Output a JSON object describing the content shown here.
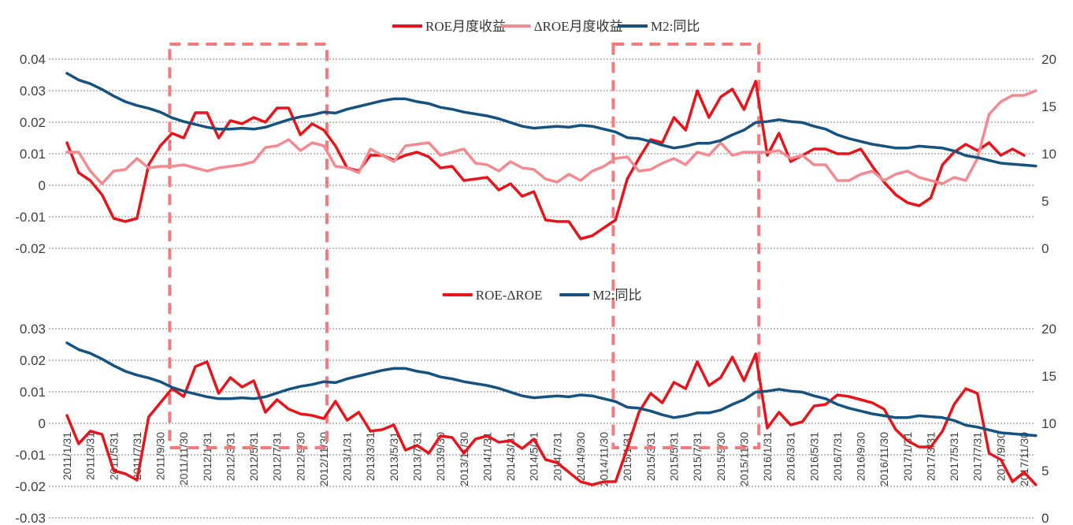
{
  "colors": {
    "roe": "#e8141b",
    "droe": "#f48a8f",
    "m2": "#16527f",
    "highlight": "#f47a7f"
  },
  "chart_data": [
    {
      "type": "line",
      "title": "",
      "legend": [
        "ROE月度收益",
        "ΔROE月度收益",
        "M2:同比"
      ],
      "legend_position": "top-center",
      "y_left": {
        "ticks": [
          "0.04",
          "0.03",
          "0.02",
          "0.01",
          "0",
          "-0.01",
          "-0.02"
        ],
        "range": [
          -0.02,
          0.04
        ]
      },
      "y_right": {
        "ticks": [
          "20",
          "15",
          "10",
          "5",
          "0"
        ],
        "range": [
          0,
          20
        ]
      },
      "grid": true,
      "series": [
        {
          "name": "ROE月度收益",
          "axis": "left",
          "color": "#e8141b",
          "values": [
            0.0135,
            0.004,
            0.0015,
            -0.003,
            -0.0105,
            -0.0115,
            -0.0105,
            0.0065,
            0.0125,
            0.0165,
            0.015,
            0.023,
            0.023,
            0.015,
            0.0205,
            0.0195,
            0.0215,
            0.02,
            0.0245,
            0.0245,
            0.016,
            0.0195,
            0.0175,
            0.0125,
            0.0055,
            0.0045,
            0.0095,
            0.0095,
            0.008,
            0.0095,
            0.0105,
            0.009,
            0.0055,
            0.006,
            0.0015,
            0.002,
            0.0025,
            -0.0015,
            0.0005,
            -0.0035,
            -0.002,
            -0.011,
            -0.0115,
            -0.0115,
            -0.017,
            -0.016,
            -0.0135,
            -0.011,
            0.002,
            0.0085,
            0.0145,
            0.0135,
            0.0215,
            0.0175,
            0.03,
            0.0215,
            0.028,
            0.0305,
            0.024,
            0.033,
            0.0095,
            0.0165,
            0.0075,
            0.0095,
            0.0115,
            0.0115,
            0.01,
            0.01,
            0.0115,
            0.006,
            0.001,
            -0.003,
            -0.0055,
            -0.0065,
            -0.004,
            0.0065,
            0.0105,
            0.013,
            0.011,
            0.0135,
            0.0095,
            0.0115,
            0.0095
          ]
        },
        {
          "name": "ΔROE月度收益",
          "axis": "left",
          "color": "#f48a8f",
          "values": [
            0.0105,
            0.0105,
            0.0045,
            0.0005,
            0.0045,
            0.005,
            0.0085,
            0.0055,
            0.006,
            0.006,
            0.0065,
            0.0055,
            0.0045,
            0.0055,
            0.006,
            0.0065,
            0.0075,
            0.012,
            0.0125,
            0.0145,
            0.011,
            0.0135,
            0.0125,
            0.006,
            0.0055,
            0.004,
            0.0115,
            0.0095,
            0.0075,
            0.0125,
            0.013,
            0.0135,
            0.0095,
            0.0105,
            0.0115,
            0.007,
            0.0065,
            0.0045,
            0.0075,
            0.0055,
            0.005,
            0.002,
            0.001,
            0.0035,
            0.0015,
            0.0045,
            0.006,
            0.0085,
            0.009,
            0.0045,
            0.005,
            0.007,
            0.0085,
            0.0065,
            0.0105,
            0.0095,
            0.0135,
            0.0095,
            0.0105,
            0.0105,
            0.0105,
            0.011,
            0.0085,
            0.0095,
            0.0065,
            0.0065,
            0.0015,
            0.0015,
            0.0035,
            0.0045,
            0.0015,
            0.0035,
            0.0045,
            0.0025,
            0.0015,
            0.0005,
            0.0025,
            0.0015,
            0.0085,
            0.0225,
            0.0265,
            0.0285,
            0.0285,
            0.03
          ]
        },
        {
          "name": "M2:同比",
          "axis": "right",
          "color": "#16527f",
          "values": [
            18.5,
            17.8,
            17.4,
            16.8,
            16.1,
            15.5,
            15.1,
            14.8,
            14.4,
            13.8,
            13.4,
            13.1,
            12.8,
            12.6,
            12.6,
            12.7,
            12.6,
            12.8,
            13.2,
            13.6,
            13.9,
            14.1,
            14.4,
            14.3,
            14.7,
            15.0,
            15.3,
            15.6,
            15.8,
            15.8,
            15.5,
            15.3,
            14.9,
            14.7,
            14.4,
            14.2,
            14.0,
            13.7,
            13.3,
            12.9,
            12.7,
            12.8,
            12.9,
            12.8,
            13.0,
            12.9,
            12.6,
            12.3,
            11.7,
            11.6,
            11.3,
            10.9,
            10.6,
            10.8,
            11.1,
            11.1,
            11.4,
            12.0,
            12.5,
            13.3,
            13.4,
            13.6,
            13.4,
            13.3,
            12.9,
            12.6,
            12.0,
            11.6,
            11.3,
            11.0,
            10.8,
            10.6,
            10.6,
            10.8,
            10.7,
            10.6,
            10.3,
            9.8,
            9.6,
            9.3,
            9.0,
            8.9,
            8.8,
            8.7
          ]
        }
      ],
      "highlight_boxes": "dashed rectangles spanning 2011/10–2012/11 and 2014/12–2015/12"
    },
    {
      "type": "line",
      "title": "",
      "legend": [
        "ROE-ΔROE",
        "M2:同比"
      ],
      "legend_position": "top-center",
      "y_left": {
        "ticks": [
          "0.03",
          "0.02",
          "0.01",
          "0",
          "-0.01",
          "-0.02",
          "-0.03"
        ],
        "range": [
          -0.03,
          0.03
        ]
      },
      "y_right": {
        "ticks": [
          "20",
          "15",
          "10",
          "5",
          "0"
        ],
        "range": [
          0,
          20
        ]
      },
      "x_ticks": [
        "2011/1/31",
        "2011/3/31",
        "2011/5/31",
        "2011/7/31",
        "2011/9/30",
        "2011/11/30",
        "2012/1/31",
        "2012/3/31",
        "2012/5/31",
        "2012/7/31",
        "2012/9/30",
        "2012/11/30",
        "2013/1/31",
        "2013/3/31",
        "2013/5/31",
        "2013/7/31",
        "2013/9/30",
        "2013/11/30",
        "2014/1/31",
        "2014/3/31",
        "2014/5/31",
        "2014/7/31",
        "2014/9/30",
        "2014/11/30",
        "2015/1/31",
        "2015/3/31",
        "2015/5/31",
        "2015/7/31",
        "2015/9/30",
        "2015/11/30",
        "2016/1/31",
        "2016/3/31",
        "2016/5/31",
        "2016/7/31",
        "2016/9/30",
        "2016/11/30",
        "2017/1/31",
        "2017/3/31",
        "2017/5/31",
        "2017/7/31",
        "2017/9/30",
        "2017/11/30"
      ],
      "grid": true,
      "series": [
        {
          "name": "ROE-ΔROE",
          "axis": "left",
          "color": "#e8141b",
          "values": [
            0.0025,
            -0.0065,
            -0.0025,
            -0.0035,
            -0.015,
            -0.016,
            -0.018,
            0.002,
            0.0065,
            0.011,
            0.0085,
            0.018,
            0.0195,
            0.0095,
            0.0145,
            0.0115,
            0.0135,
            0.0035,
            0.0075,
            0.0045,
            0.003,
            0.0025,
            0.0015,
            0.007,
            0.001,
            0.0035,
            -0.0025,
            -0.002,
            -0.0005,
            -0.0085,
            -0.007,
            -0.0095,
            -0.004,
            -0.0045,
            -0.0095,
            -0.005,
            -0.004,
            -0.006,
            -0.0055,
            -0.008,
            -0.005,
            -0.0115,
            -0.0125,
            -0.0155,
            -0.0185,
            -0.0195,
            -0.0185,
            -0.0185,
            -0.008,
            0.0035,
            0.0095,
            0.0065,
            0.013,
            0.011,
            0.0195,
            0.012,
            0.0145,
            0.021,
            0.0135,
            0.022,
            -0.0015,
            0.0035,
            -0.0005,
            0.0005,
            0.0055,
            0.006,
            0.009,
            0.0085,
            0.0075,
            0.0065,
            0.0045,
            -0.002,
            -0.0055,
            -0.0075,
            -0.0075,
            -0.0025,
            0.006,
            0.011,
            0.0095,
            -0.0095,
            -0.0115,
            -0.0185,
            -0.0155,
            -0.0195
          ]
        },
        {
          "name": "M2:同比",
          "axis": "right",
          "color": "#16527f",
          "values": [
            18.5,
            17.8,
            17.4,
            16.8,
            16.1,
            15.5,
            15.1,
            14.8,
            14.4,
            13.8,
            13.4,
            13.1,
            12.8,
            12.6,
            12.6,
            12.7,
            12.6,
            12.8,
            13.2,
            13.6,
            13.9,
            14.1,
            14.4,
            14.3,
            14.7,
            15.0,
            15.3,
            15.6,
            15.8,
            15.8,
            15.5,
            15.3,
            14.9,
            14.7,
            14.4,
            14.2,
            14.0,
            13.7,
            13.3,
            12.9,
            12.7,
            12.8,
            12.9,
            12.8,
            13.0,
            12.9,
            12.6,
            12.3,
            11.7,
            11.6,
            11.3,
            10.9,
            10.6,
            10.8,
            11.1,
            11.1,
            11.4,
            12.0,
            12.5,
            13.3,
            13.4,
            13.6,
            13.4,
            13.3,
            12.9,
            12.6,
            12.0,
            11.6,
            11.3,
            11.0,
            10.8,
            10.6,
            10.6,
            10.8,
            10.7,
            10.6,
            10.3,
            9.8,
            9.6,
            9.3,
            9.0,
            8.9,
            8.8,
            8.7
          ]
        }
      ]
    }
  ]
}
